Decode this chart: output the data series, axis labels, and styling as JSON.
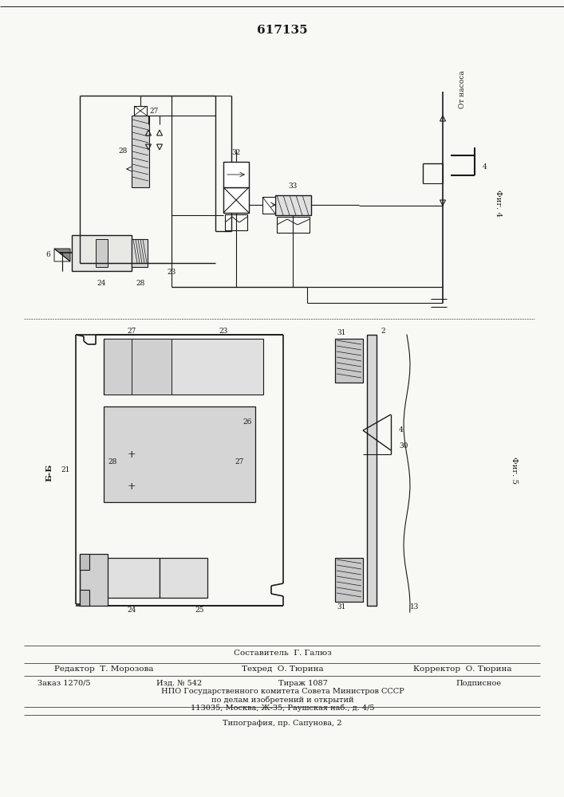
{
  "title": "617135",
  "bg_color": "#f8f8f5",
  "line_color": "#1a1a1a",
  "fig4_label": "Фиг. 4",
  "fig5_label": "Фиг. 5",
  "footer": {
    "sostavitel": "Составитель  Г. Галюз",
    "redaktor": "Редактор  Т. Морозова",
    "tekhred": "Техред  О. Тюрина",
    "korrektor": "Корректор  О. Тюрина",
    "zakaz": "Заказ 1270/5",
    "izd": "Изд. № 542",
    "tirazh": "Тираж 1087",
    "podpisnoe": "Подписное",
    "npo1": "НПО Государственного комитета Совета Министров СССР",
    "npo2": "по делам изобретений и открытий",
    "npo3": "113035, Москва, Ж-35, Раушская наб., д. 4/5",
    "tipografiya": "Типография, пр. Сапунова, 2"
  }
}
